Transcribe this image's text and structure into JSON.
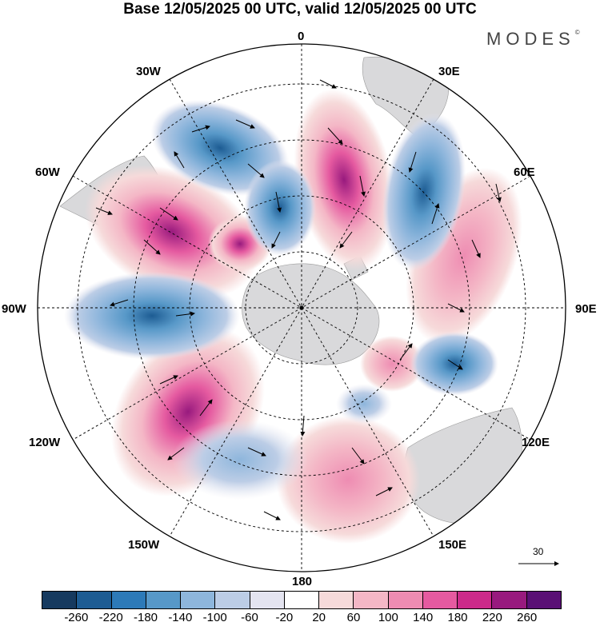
{
  "title": "Base 12/05/2025 00 UTC, valid 12/05/2025 00 UTC",
  "brand": {
    "name": "MODES",
    "mark": "©"
  },
  "longitude_labels": {
    "lon_0": "0",
    "lon_30e": "30E",
    "lon_60e": "60E",
    "lon_90e": "90E",
    "lon_120e": "120E",
    "lon_150e": "150E",
    "lon_180": "180",
    "lon_150w": "150W",
    "lon_120w": "120W",
    "lon_90w": "90W",
    "lon_60w": "60W",
    "lon_30w": "30W"
  },
  "vector_scale": {
    "value": "30"
  },
  "colorbar": {
    "colors": [
      "#163a5f",
      "#1d5c93",
      "#2d7ab8",
      "#5798c8",
      "#8eb6dc",
      "#bccde6",
      "#e4e4f0",
      "#ffffff",
      "#f6dada",
      "#f4b7c6",
      "#ee8cb2",
      "#e55aa0",
      "#cc2a8a",
      "#981a7e",
      "#5a1075"
    ],
    "ticks": [
      "-260",
      "-220",
      "-180",
      "-140",
      "-100",
      "-60",
      "-20",
      "20",
      "60",
      "100",
      "140",
      "180",
      "220",
      "260"
    ]
  },
  "colors": {
    "land": "#d9d9db",
    "neg": "#4d8dc4",
    "pos": "#e06aa2",
    "frame": "#000000"
  }
}
